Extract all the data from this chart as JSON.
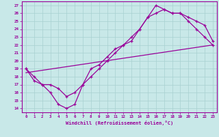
{
  "xlabel": "Windchill (Refroidissement éolien,°C)",
  "bg_color": "#c8e8e8",
  "line_color": "#990099",
  "grid_color": "#a8d0d0",
  "xlim": [
    -0.5,
    23.5
  ],
  "ylim": [
    13.5,
    27.5
  ],
  "xticks": [
    0,
    1,
    2,
    3,
    4,
    5,
    6,
    7,
    8,
    9,
    10,
    11,
    12,
    13,
    14,
    15,
    16,
    17,
    18,
    19,
    20,
    21,
    22,
    23
  ],
  "yticks": [
    14,
    15,
    16,
    17,
    18,
    19,
    20,
    21,
    22,
    23,
    24,
    25,
    26,
    27
  ],
  "line1_x": [
    0,
    1,
    2,
    3,
    4,
    5,
    6,
    7,
    8,
    9,
    10,
    11,
    12,
    13,
    14,
    15,
    16,
    17,
    18,
    19,
    20,
    21,
    22,
    23
  ],
  "line1_y": [
    19,
    18,
    17,
    16,
    14.5,
    14,
    14.5,
    17,
    19,
    19.5,
    20.5,
    21.5,
    22,
    22.5,
    24,
    25.5,
    27,
    26.5,
    26,
    26,
    25.5,
    25,
    24.5,
    22.5
  ],
  "line2_x": [
    0,
    1,
    2,
    3,
    4,
    5,
    6,
    7,
    8,
    9,
    10,
    11,
    12,
    13,
    14,
    15,
    16,
    17,
    18,
    19,
    20,
    21,
    22,
    23
  ],
  "line2_y": [
    19,
    17.5,
    17,
    17,
    16.5,
    15.5,
    16,
    17,
    18,
    19,
    20,
    21,
    22,
    23,
    24,
    25.5,
    26,
    26.5,
    26,
    26,
    25,
    24,
    23,
    22
  ],
  "line3_x": [
    0,
    23
  ],
  "line3_y": [
    18.5,
    22
  ]
}
